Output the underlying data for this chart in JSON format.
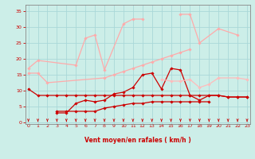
{
  "xlabel": "Vent moyen/en rafales ( km/h )",
  "bg_color": "#cceee8",
  "grid_color": "#aad8d8",
  "x_ticks": [
    0,
    1,
    2,
    3,
    4,
    5,
    6,
    7,
    8,
    9,
    10,
    11,
    12,
    13,
    14,
    15,
    16,
    17,
    18,
    19,
    20,
    21,
    22,
    23
  ],
  "y_ticks": [
    0,
    5,
    10,
    15,
    20,
    25,
    30,
    35
  ],
  "ylim": [
    -0.5,
    37
  ],
  "xlim": [
    -0.3,
    23.3
  ],
  "series": [
    {
      "x": [
        0,
        1,
        2,
        3,
        4,
        5,
        6,
        7,
        8,
        9,
        10,
        11,
        12,
        13,
        14,
        15,
        16,
        17,
        18,
        19,
        20,
        21,
        22,
        23
      ],
      "y": [
        10.5,
        8.5,
        8.5,
        8.5,
        8.5,
        8.5,
        8.5,
        8.5,
        8.5,
        8.5,
        8.5,
        8.5,
        8.5,
        8.5,
        8.5,
        8.5,
        8.5,
        8.5,
        8.5,
        8.5,
        8.5,
        8.0,
        8.0,
        8.0
      ],
      "color": "#cc0000",
      "lw": 0.9,
      "marker": "D",
      "ms": 1.8
    },
    {
      "x": [
        3,
        4,
        5,
        6,
        7,
        8,
        9,
        10,
        11,
        12,
        13,
        14,
        15,
        16,
        17,
        18,
        19
      ],
      "y": [
        3.5,
        3.5,
        3.5,
        3.5,
        3.5,
        4.5,
        5.0,
        5.5,
        6.0,
        6.0,
        6.5,
        6.5,
        6.5,
        6.5,
        6.5,
        6.5,
        6.5
      ],
      "color": "#cc0000",
      "lw": 0.9,
      "marker": "D",
      "ms": 1.8
    },
    {
      "x": [
        3,
        4,
        5,
        6,
        7,
        8,
        9,
        10,
        11,
        12,
        13,
        14,
        15,
        16,
        17,
        18,
        19,
        20,
        21,
        22,
        23
      ],
      "y": [
        3.0,
        3.0,
        6.0,
        7.0,
        6.5,
        7.0,
        9.0,
        9.5,
        11.0,
        15.0,
        15.5,
        10.5,
        17.0,
        16.5,
        8.5,
        7.0,
        8.5,
        8.5,
        8.0,
        8.0,
        8.0
      ],
      "color": "#cc0000",
      "lw": 0.9,
      "marker": "D",
      "ms": 1.8
    },
    {
      "x": [
        0,
        1,
        5,
        6,
        7,
        8,
        10,
        11,
        12
      ],
      "y": [
        17.0,
        19.5,
        18.0,
        26.5,
        27.5,
        16.5,
        31.0,
        32.5,
        32.5
      ],
      "color": "#ffaaaa",
      "lw": 0.9,
      "marker": "D",
      "ms": 1.8
    },
    {
      "x": [
        0,
        1,
        2,
        8,
        9,
        10,
        11,
        12,
        13,
        14,
        15,
        16,
        17
      ],
      "y": [
        15.5,
        15.5,
        12.5,
        14.0,
        15.0,
        16.0,
        17.0,
        18.0,
        19.0,
        20.0,
        21.0,
        22.0,
        23.0
      ],
      "color": "#ffaaaa",
      "lw": 0.9,
      "marker": "D",
      "ms": 1.8
    },
    {
      "x": [
        16,
        17,
        18,
        20,
        22
      ],
      "y": [
        34.0,
        34.0,
        25.0,
        29.5,
        27.5
      ],
      "color": "#ffaaaa",
      "lw": 0.9,
      "marker": "D",
      "ms": 1.8
    },
    {
      "x": [
        14,
        15,
        16,
        17,
        18,
        19,
        20,
        22,
        23
      ],
      "y": [
        13.5,
        13.0,
        13.0,
        13.5,
        11.0,
        12.0,
        14.0,
        14.0,
        13.5
      ],
      "color": "#ffbbbb",
      "lw": 0.9,
      "marker": "D",
      "ms": 1.8
    }
  ],
  "tick_color": "#cc0000",
  "label_color": "#cc0000",
  "axis_color": "#888888"
}
